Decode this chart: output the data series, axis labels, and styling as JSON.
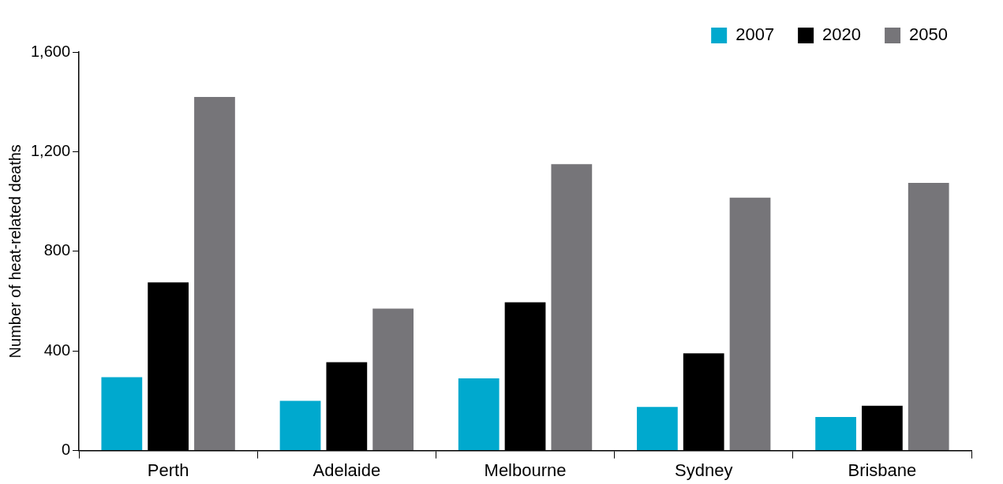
{
  "chart_data": {
    "type": "bar",
    "ylabel": "Number of heat-related deaths",
    "categories": [
      "Perth",
      "Adelaide",
      "Melbourne",
      "Sydney",
      "Brisbane"
    ],
    "series": [
      {
        "name": "2007",
        "color": "#00a9ce",
        "values": [
          295,
          200,
          290,
          175,
          135
        ]
      },
      {
        "name": "2020",
        "color": "#000000",
        "values": [
          675,
          355,
          595,
          390,
          180
        ]
      },
      {
        "name": "2050",
        "color": "#767579",
        "values": [
          1420,
          570,
          1150,
          1015,
          1075
        ]
      }
    ],
    "ylim": [
      0,
      1600
    ],
    "yticks": [
      {
        "value": 0,
        "label": "0"
      },
      {
        "value": 400,
        "label": "400"
      },
      {
        "value": 800,
        "label": "800"
      },
      {
        "value": 1200,
        "label": "1,200"
      },
      {
        "value": 1600,
        "label": "1,600"
      }
    ],
    "legend": "top right"
  }
}
